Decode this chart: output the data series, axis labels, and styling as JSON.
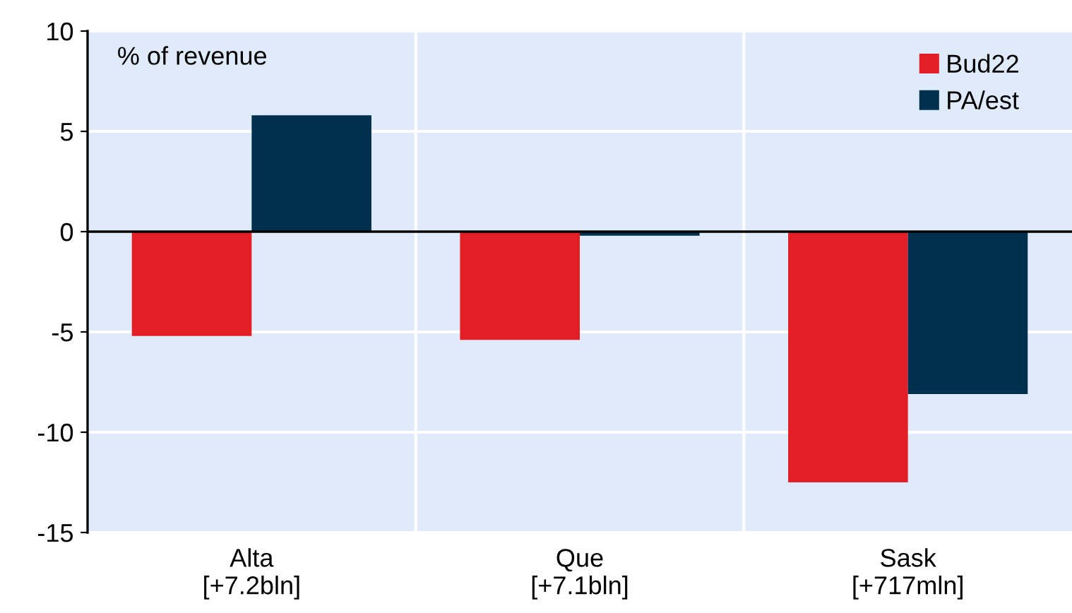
{
  "chart_data": {
    "type": "bar",
    "categories": [
      "Alta\n[+7.2bln]",
      "Que\n[+7.1bln]",
      "Sask\n[+717mln]"
    ],
    "series": [
      {
        "name": "Bud22",
        "color": "#e31e24",
        "values": [
          -5.2,
          -5.4,
          -12.5
        ]
      },
      {
        "name": "PA/est",
        "color": "#00304d",
        "values": [
          5.8,
          -0.2,
          -8.1
        ]
      }
    ],
    "ylim": [
      -15,
      10
    ],
    "yticks": [
      -15,
      -10,
      -5,
      0,
      5,
      10
    ],
    "annotations": [
      "% of revenue"
    ],
    "grid": true,
    "legend": "top right"
  }
}
